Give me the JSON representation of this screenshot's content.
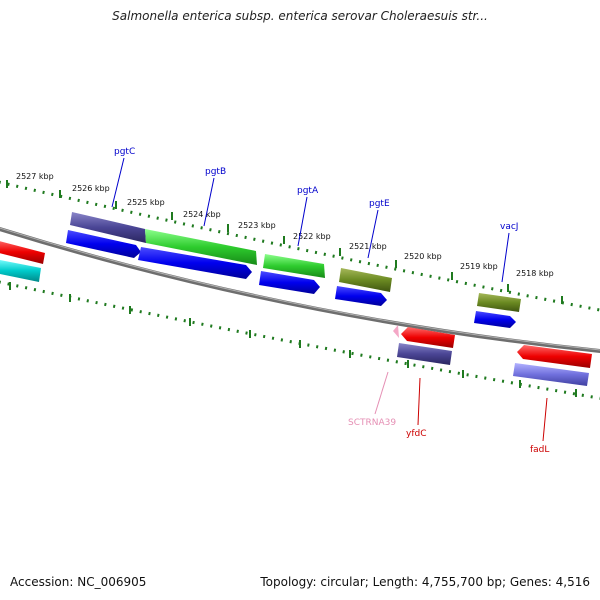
{
  "title": "Salmonella enterica subsp. enterica serovar Choleraesuis str...",
  "footer": {
    "accession": "Accession: NC_006905",
    "summary": "Topology: circular; Length: 4,755,700 bp; Genes: 4,516"
  },
  "colors": {
    "backbone": "#7a7a7a",
    "tick": "#1f7a1f",
    "label_blue": "#0000cc",
    "label_red": "#cc0000",
    "label_pink": "#e58fb4"
  },
  "scale_labels": [
    "2527 kbp",
    "2526 kbp",
    "2525 kbp",
    "2524 kbp",
    "2523 kbp",
    "2522 kbp",
    "2521 kbp",
    "2520 kbp",
    "2519 kbp",
    "2518 kbp"
  ],
  "gene_labels": {
    "pgtC": "pgtC",
    "pgtB": "pgtB",
    "pgtA": "pgtA",
    "pgtE": "pgtE",
    "vacJ": "vacJ",
    "sctrna39": "SCTRNA39",
    "yfdC": "yfdC",
    "fadL": "fadL"
  }
}
